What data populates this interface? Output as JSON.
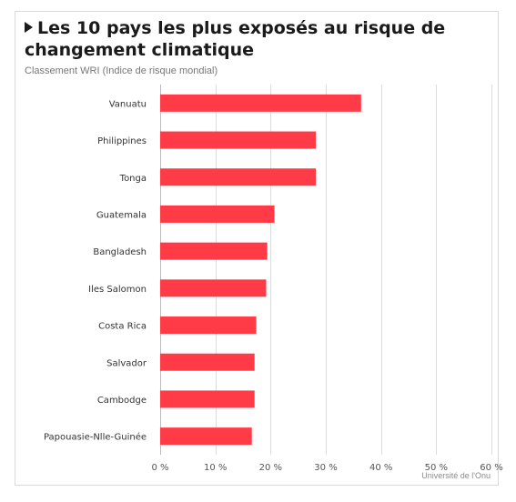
{
  "header": {
    "title": "Les 10 pays les plus exposés au risque de changement climatique",
    "subtitle": "Classement WRI (Indice de risque mondial)"
  },
  "footer": {
    "credit": "Université de l'Onu"
  },
  "colors": {
    "bar": "#ff3b47",
    "grid": "#dcdcdc",
    "axis": "#bbbbbb"
  },
  "chart_data": {
    "type": "bar",
    "orientation": "horizontal",
    "title": "Les 10 pays les plus exposés au risque de changement climatique",
    "subtitle": "Classement WRI (Indice de risque mondial)",
    "categories": [
      "Vanuatu",
      "Philippines",
      "Tonga",
      "Guatemala",
      "Bangladesh",
      "Iles Salomon",
      "Costa Rica",
      "Salvador",
      "Cambodge",
      "Papouasie-Nlle-Guinée"
    ],
    "values": [
      36.4,
      28.2,
      28.2,
      20.7,
      19.4,
      19.2,
      17.4,
      17.1,
      17.1,
      16.6
    ],
    "xlim": [
      0,
      60
    ],
    "xticks": [
      0,
      10,
      20,
      30,
      40,
      50,
      60
    ],
    "xtick_labels": [
      "0 %",
      "10 %",
      "20 %",
      "30 %",
      "40 %",
      "50 %",
      "60 %"
    ],
    "grid": true,
    "legend": false
  }
}
